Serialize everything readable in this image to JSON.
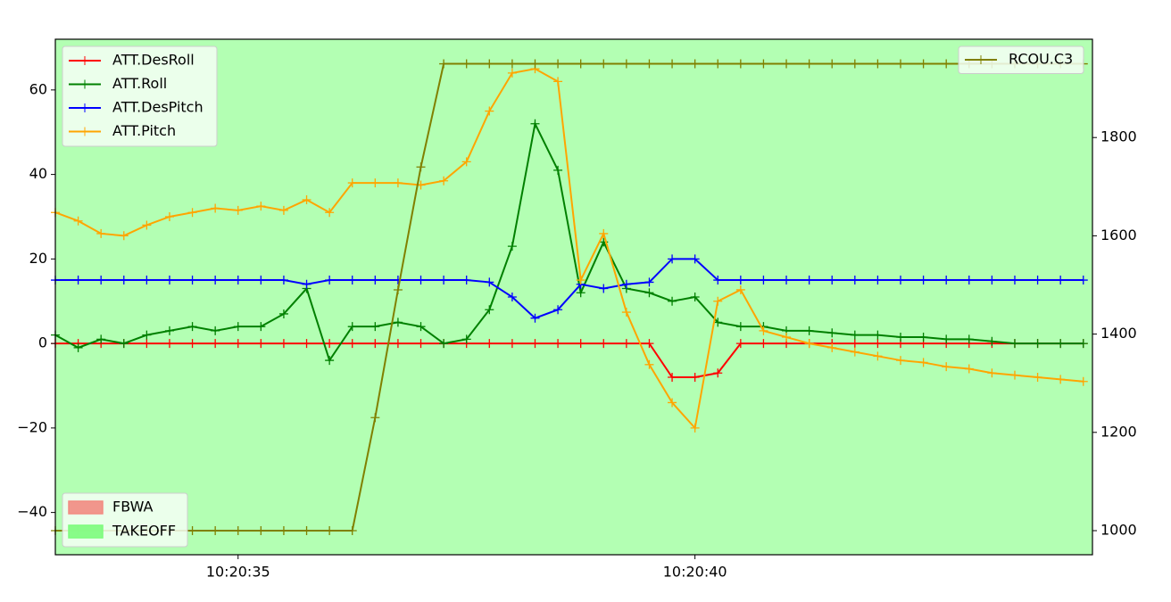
{
  "chart_data": {
    "type": "line",
    "x": [
      33.0,
      33.25,
      33.5,
      33.75,
      34.0,
      34.25,
      34.5,
      34.75,
      35.0,
      35.25,
      35.5,
      35.75,
      36.0,
      36.25,
      36.5,
      36.75,
      37.0,
      37.25,
      37.5,
      37.75,
      38.0,
      38.25,
      38.5,
      38.75,
      39.0,
      39.25,
      39.5,
      39.75,
      40.0,
      40.25,
      40.5,
      40.75,
      41.0,
      41.25,
      41.5,
      41.75,
      42.0,
      42.25,
      42.5,
      42.75,
      43.0,
      43.25,
      43.5,
      43.75,
      44.0,
      44.25
    ],
    "xlim": [
      33.0,
      44.35
    ],
    "xticks": [
      {
        "value": 35,
        "label": "10:20:35"
      },
      {
        "value": 40,
        "label": "10:20:40"
      }
    ],
    "ylim": [
      -50,
      72
    ],
    "yticks": [
      {
        "value": -40,
        "label": "−40"
      },
      {
        "value": -20,
        "label": "−20"
      },
      0,
      20,
      40,
      60
    ],
    "y2lim": [
      951,
      2000
    ],
    "y2ticks": [
      1000,
      1200,
      1400,
      1600,
      1800
    ],
    "grid": false,
    "background": "#b3ffb3",
    "legend": "upper left",
    "y2_legend": "upper right",
    "modes_legend": "lower left",
    "modes": [
      {
        "name": "FBWA",
        "color": "#f28b82"
      },
      {
        "name": "TAKEOFF",
        "color": "#7dfc7d"
      }
    ],
    "series": [
      {
        "name": "ATT.DesRoll",
        "color": "#ff0000",
        "values": [
          0,
          0,
          0,
          0,
          0,
          0,
          0,
          0,
          0,
          0,
          0,
          0,
          0,
          0,
          0,
          0,
          0,
          0,
          0,
          0,
          0,
          0,
          0,
          0,
          0,
          0,
          0,
          -8,
          -8,
          -7,
          0,
          0,
          0,
          0,
          0,
          0,
          0,
          0,
          0,
          0,
          0,
          0,
          0,
          0,
          0,
          0
        ]
      },
      {
        "name": "ATT.Roll",
        "color": "#008000",
        "values": [
          2,
          -1,
          1,
          0,
          2,
          3,
          4,
          3,
          4,
          4,
          7,
          13,
          -4,
          4,
          4,
          5,
          4,
          0,
          1,
          8,
          23,
          52,
          41,
          12,
          24,
          13,
          12,
          10,
          11,
          5,
          4,
          4,
          3,
          3,
          2.5,
          2,
          2,
          1.5,
          1.5,
          1,
          1,
          0.5,
          0,
          0,
          0,
          0
        ]
      },
      {
        "name": "ATT.DesPitch",
        "color": "#0000ff",
        "values": [
          15,
          15,
          15,
          15,
          15,
          15,
          15,
          15,
          15,
          15,
          15,
          14,
          15,
          15,
          15,
          15,
          15,
          15,
          15,
          14.5,
          11,
          6,
          8,
          14,
          13,
          14,
          14.5,
          20,
          20,
          15,
          15,
          15,
          15,
          15,
          15,
          15,
          15,
          15,
          15,
          15,
          15,
          15,
          15,
          15,
          15,
          15
        ]
      },
      {
        "name": "ATT.Pitch",
        "color": "#ffa500",
        "values": [
          31,
          29,
          26,
          25.5,
          28,
          30,
          31,
          32,
          31.5,
          32.5,
          31.5,
          34,
          31,
          38,
          38,
          38,
          37.5,
          38.5,
          43,
          55,
          64,
          65,
          62,
          15,
          26,
          7.4,
          -5,
          -14,
          -20,
          10,
          12.7,
          3,
          1.5,
          0,
          -1,
          -2,
          -3,
          -4,
          -4.5,
          -5.5,
          -6,
          -7,
          -7.5,
          -8,
          -8.5,
          -9
        ]
      },
      {
        "name": "RCOU.C3",
        "color": "#808000",
        "axis": "y2",
        "values": [
          1000,
          1000,
          1000,
          1000,
          1000,
          1000,
          1000,
          1000,
          1000,
          1000,
          1000,
          1000,
          1000,
          1000,
          1230,
          1490,
          1740,
          1950,
          1950,
          1950,
          1950,
          1950,
          1950,
          1950,
          1950,
          1950,
          1950,
          1950,
          1950,
          1950,
          1950,
          1950,
          1950,
          1950,
          1950,
          1950,
          1950,
          1950,
          1950,
          1950,
          1950,
          1950,
          1950,
          1950,
          1950,
          1950
        ]
      }
    ]
  }
}
